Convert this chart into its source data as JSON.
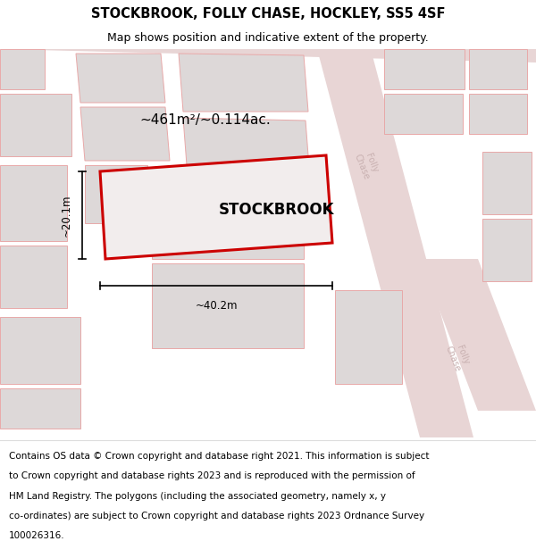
{
  "title_line1": "STOCKBROOK, FOLLY CHASE, HOCKLEY, SS5 4SF",
  "title_line2": "Map shows position and indicative extent of the property.",
  "footer_lines": [
    "Contains OS data © Crown copyright and database right 2021. This information is subject",
    "to Crown copyright and database rights 2023 and is reproduced with the permission of",
    "HM Land Registry. The polygons (including the associated geometry, namely x, y",
    "co-ordinates) are subject to Crown copyright and database rights 2023 Ordnance Survey",
    "100026316."
  ],
  "property_name": "STOCKBROOK",
  "area_text": "~461m²/~0.114ac.",
  "width_text": "~40.2m",
  "height_text": "~20.1m",
  "bg_color": "#f2eded",
  "road_color": "#e8d5d5",
  "building_fill": "#ddd8d8",
  "building_edge": "#e8a8a8",
  "plot_edge": "#cc0000",
  "title_fontsize": 10.5,
  "subtitle_fontsize": 9,
  "footer_fontsize": 7.5,
  "road_label_color": "#c8b0b0",
  "road_label_fontsize": 7
}
